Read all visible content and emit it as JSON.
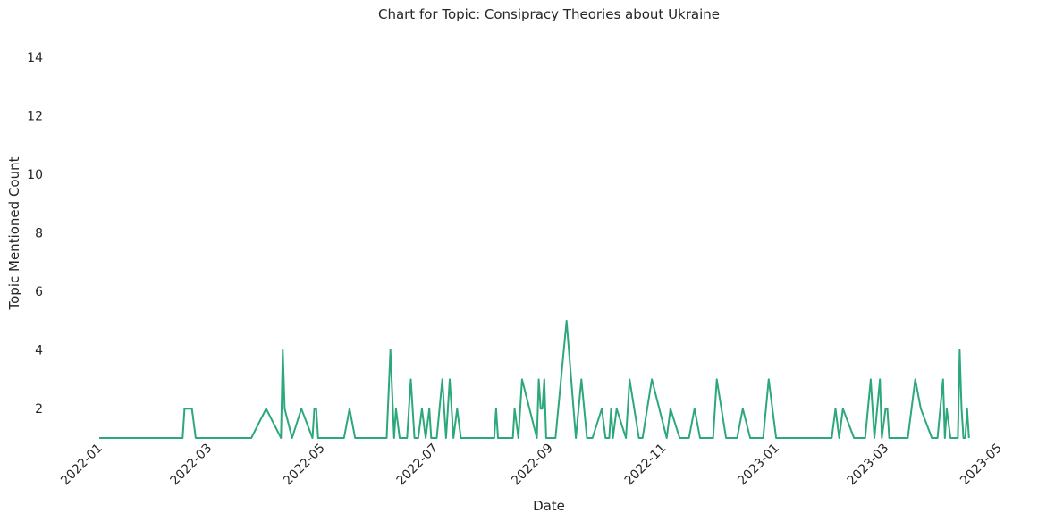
{
  "chart_data": {
    "type": "line",
    "title": "Chart for Topic: Consipracy Theories about Ukraine",
    "xlabel": "Date",
    "ylabel": "Topic Mentioned Count",
    "xlim": [
      "2022-01-01",
      "2023-05-01"
    ],
    "ylim": [
      1,
      15
    ],
    "x_ticks": [
      "2022-01",
      "2022-03",
      "2022-05",
      "2022-07",
      "2022-09",
      "2022-11",
      "2023-01",
      "2023-03",
      "2023-05"
    ],
    "y_ticks": [
      2,
      4,
      6,
      8,
      10,
      12,
      14
    ],
    "grid": false,
    "color": "#2ca87a",
    "series": [
      {
        "x": [
          "2022-01-01",
          "2022-02-15",
          "2022-02-16",
          "2022-02-20",
          "2022-02-22",
          "2022-03-24",
          "2022-04-01",
          "2022-04-09",
          "2022-04-10",
          "2022-04-11",
          "2022-04-15",
          "2022-04-20",
          "2022-04-26",
          "2022-04-27",
          "2022-04-28",
          "2022-04-29",
          "2022-05-13",
          "2022-05-16",
          "2022-05-19",
          "2022-06-05",
          "2022-06-07",
          "2022-06-09",
          "2022-06-10",
          "2022-06-12",
          "2022-06-16",
          "2022-06-18",
          "2022-06-20",
          "2022-06-22",
          "2022-06-24",
          "2022-06-26",
          "2022-06-28",
          "2022-06-29",
          "2022-07-02",
          "2022-07-05",
          "2022-07-07",
          "2022-07-09",
          "2022-07-11",
          "2022-07-13",
          "2022-07-15",
          "2022-07-21",
          "2022-08-02",
          "2022-08-03",
          "2022-08-04",
          "2022-08-12",
          "2022-08-13",
          "2022-08-15",
          "2022-08-17",
          "2022-08-25",
          "2022-08-26",
          "2022-08-27",
          "2022-08-28",
          "2022-08-29",
          "2022-08-30",
          "2022-09-04",
          "2022-09-10",
          "2022-09-15",
          "2022-09-18",
          "2022-09-21",
          "2022-09-24",
          "2022-09-29",
          "2022-10-01",
          "2022-10-03",
          "2022-10-04",
          "2022-10-05",
          "2022-10-07",
          "2022-10-12",
          "2022-10-14",
          "2022-10-19",
          "2022-10-21",
          "2022-10-26",
          "2022-11-03",
          "2022-11-05",
          "2022-11-10",
          "2022-11-15",
          "2022-11-18",
          "2022-11-21",
          "2022-11-28",
          "2022-11-30",
          "2022-12-05",
          "2022-12-11",
          "2022-12-14",
          "2022-12-18",
          "2022-12-25",
          "2022-12-28",
          "2023-01-01",
          "2023-01-31",
          "2023-02-02",
          "2023-02-04",
          "2023-02-06",
          "2023-02-12",
          "2023-02-18",
          "2023-02-21",
          "2023-02-23",
          "2023-02-26",
          "2023-02-27",
          "2023-03-01",
          "2023-03-02",
          "2023-03-03",
          "2023-03-05",
          "2023-03-13",
          "2023-03-17",
          "2023-03-20",
          "2023-03-26",
          "2023-03-29",
          "2023-04-01",
          "2023-04-02",
          "2023-04-03",
          "2023-04-05",
          "2023-04-09",
          "2023-04-10",
          "2023-04-11",
          "2023-04-12",
          "2023-04-13",
          "2023-04-14",
          "2023-04-15"
        ],
        "y": [
          1,
          1,
          2,
          2,
          1,
          1,
          2,
          1,
          4,
          2,
          1,
          2,
          1,
          2,
          2,
          1,
          1,
          2,
          1,
          1,
          4,
          1,
          2,
          1,
          1,
          3,
          1,
          1,
          2,
          1,
          2,
          1,
          1,
          3,
          1,
          3,
          1,
          2,
          1,
          1,
          1,
          2,
          1,
          1,
          2,
          1,
          3,
          1,
          3,
          2,
          2,
          3,
          1,
          1,
          5,
          1,
          3,
          1,
          1,
          2,
          1,
          1,
          2,
          1,
          2,
          1,
          3,
          1,
          1,
          3,
          1,
          2,
          1,
          1,
          2,
          1,
          1,
          3,
          1,
          1,
          2,
          1,
          1,
          3,
          1,
          1,
          2,
          1,
          2,
          1,
          1,
          3,
          1,
          3,
          1,
          2,
          2,
          1,
          1,
          1,
          3,
          2,
          1,
          1,
          3,
          1,
          2,
          1,
          1,
          4,
          2,
          1,
          1,
          2,
          1
        ]
      }
    ]
  }
}
